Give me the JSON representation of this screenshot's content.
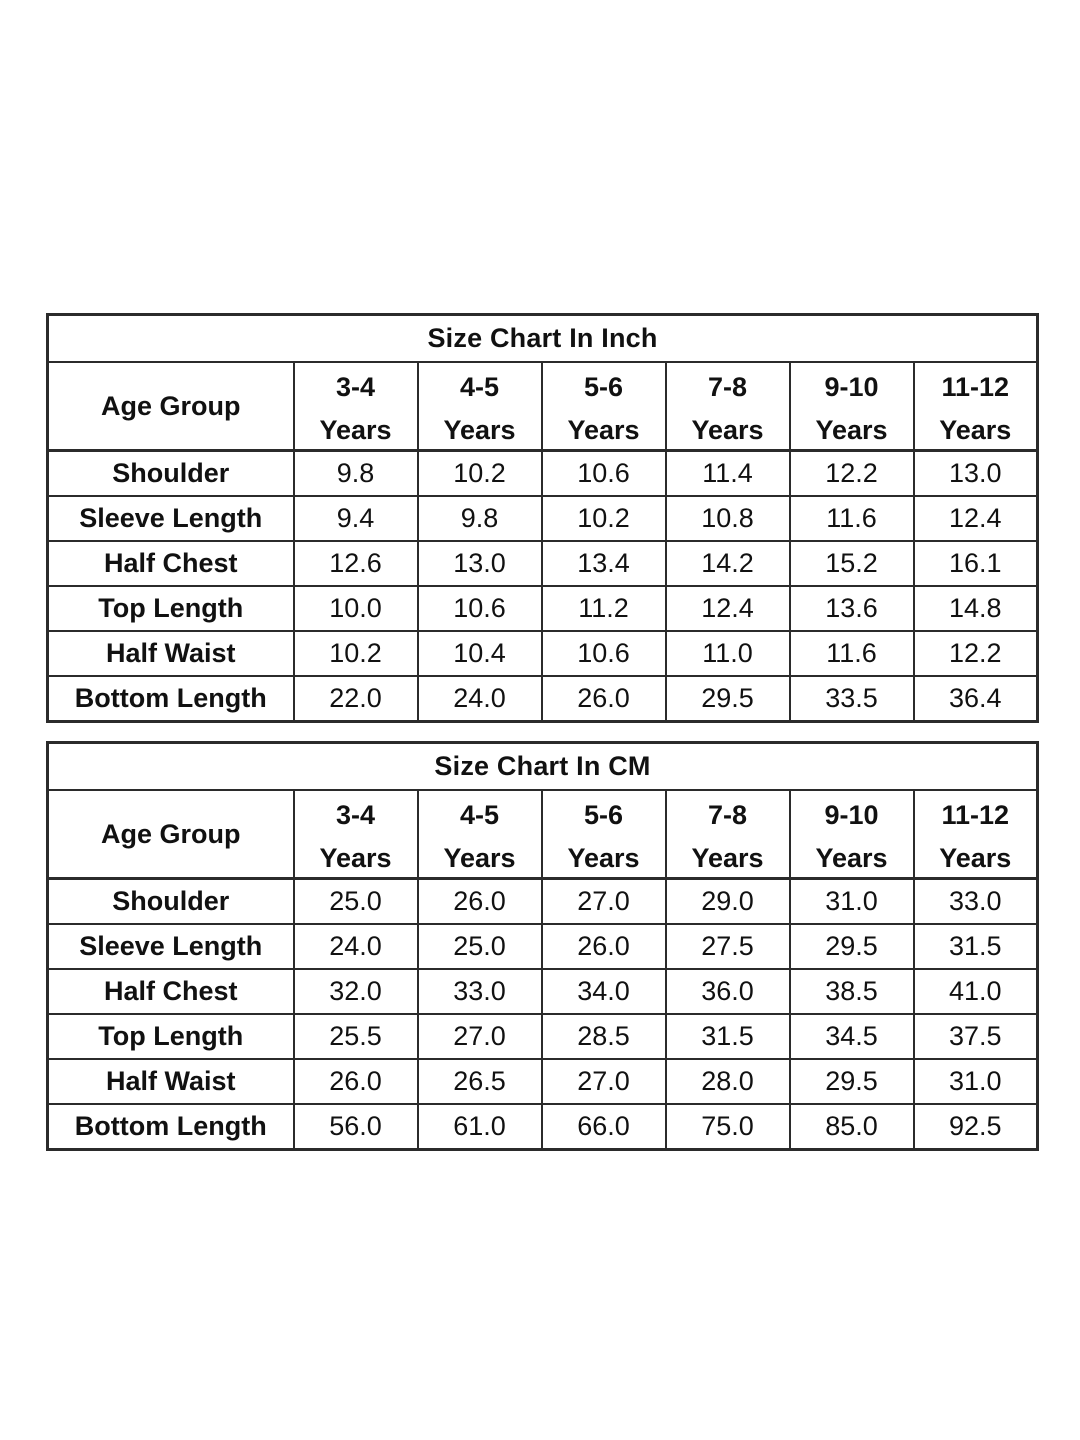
{
  "tables": [
    {
      "title": "Size Chart In Inch",
      "corner": "Age Group",
      "columns": [
        {
          "range": "3-4",
          "unit": "Years"
        },
        {
          "range": "4-5",
          "unit": "Years"
        },
        {
          "range": "5-6",
          "unit": "Years"
        },
        {
          "range": "7-8",
          "unit": "Years"
        },
        {
          "range": "9-10",
          "unit": "Years"
        },
        {
          "range": "11-12",
          "unit": "Years"
        }
      ],
      "rows": [
        {
          "label": "Shoulder",
          "values": [
            "9.8",
            "10.2",
            "10.6",
            "11.4",
            "12.2",
            "13.0"
          ]
        },
        {
          "label": "Sleeve Length",
          "values": [
            "9.4",
            "9.8",
            "10.2",
            "10.8",
            "11.6",
            "12.4"
          ]
        },
        {
          "label": "Half Chest",
          "values": [
            "12.6",
            "13.0",
            "13.4",
            "14.2",
            "15.2",
            "16.1"
          ]
        },
        {
          "label": "Top Length",
          "values": [
            "10.0",
            "10.6",
            "11.2",
            "12.4",
            "13.6",
            "14.8"
          ]
        },
        {
          "label": "Half Waist",
          "values": [
            "10.2",
            "10.4",
            "10.6",
            "11.0",
            "11.6",
            "12.2"
          ]
        },
        {
          "label": "Bottom Length",
          "values": [
            "22.0",
            "24.0",
            "26.0",
            "29.5",
            "33.5",
            "36.4"
          ]
        }
      ]
    },
    {
      "title": "Size Chart In CM",
      "corner": "Age Group",
      "columns": [
        {
          "range": "3-4",
          "unit": "Years"
        },
        {
          "range": "4-5",
          "unit": "Years"
        },
        {
          "range": "5-6",
          "unit": "Years"
        },
        {
          "range": "7-8",
          "unit": "Years"
        },
        {
          "range": "9-10",
          "unit": "Years"
        },
        {
          "range": "11-12",
          "unit": "Years"
        }
      ],
      "rows": [
        {
          "label": "Shoulder",
          "values": [
            "25.0",
            "26.0",
            "27.0",
            "29.0",
            "31.0",
            "33.0"
          ]
        },
        {
          "label": "Sleeve Length",
          "values": [
            "24.0",
            "25.0",
            "26.0",
            "27.5",
            "29.5",
            "31.5"
          ]
        },
        {
          "label": "Half Chest",
          "values": [
            "32.0",
            "33.0",
            "34.0",
            "36.0",
            "38.5",
            "41.0"
          ]
        },
        {
          "label": "Top Length",
          "values": [
            "25.5",
            "27.0",
            "28.5",
            "31.5",
            "34.5",
            "37.5"
          ]
        },
        {
          "label": "Half Waist",
          "values": [
            "26.0",
            "26.5",
            "27.0",
            "28.0",
            "29.5",
            "31.0"
          ]
        },
        {
          "label": "Bottom Length",
          "values": [
            "56.0",
            "61.0",
            "66.0",
            "75.0",
            "85.0",
            "92.5"
          ]
        }
      ]
    }
  ]
}
